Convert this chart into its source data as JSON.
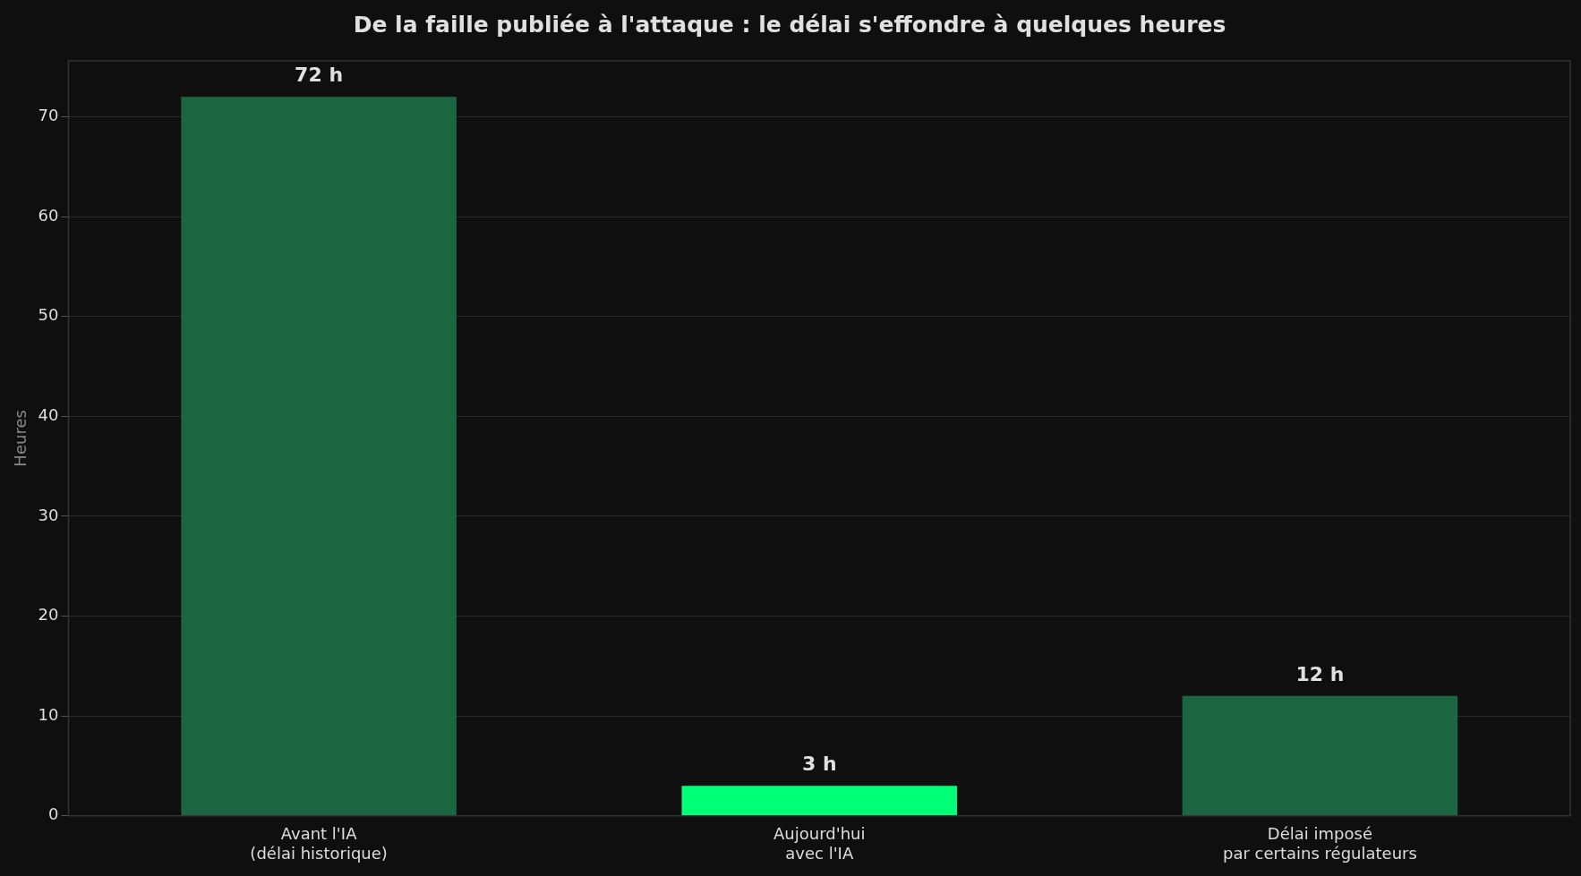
{
  "chart_data": {
    "type": "bar",
    "title": "De la faille publiée à l'attaque : le délai s'effondre à quelques heures",
    "ylabel": "Heures",
    "categories": [
      "Avant l'IA\n(délai historique)",
      "Aujourd'hui\navec l'IA",
      "Délai imposé\npar certains régulateurs"
    ],
    "values": [
      72,
      3,
      12
    ],
    "colors": [
      "#1b6641",
      "#00ff77",
      "#1b6641"
    ],
    "value_labels": [
      "72 h",
      "3 h",
      "12 h"
    ],
    "ylim": [
      0,
      75.6
    ],
    "yticks": [
      0,
      10,
      20,
      30,
      40,
      50,
      60,
      70
    ],
    "grid": "y",
    "legend": false
  }
}
